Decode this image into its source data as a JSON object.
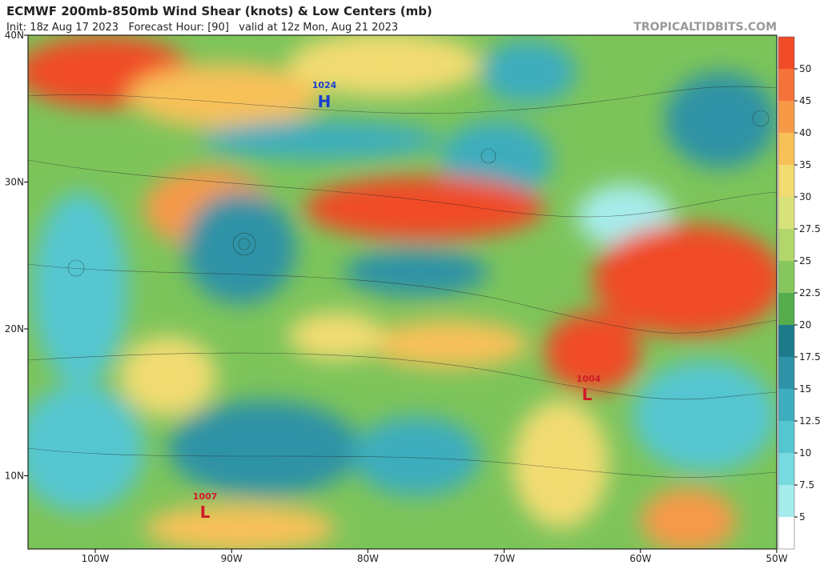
{
  "header": {
    "title": "ECMWF 200mb-850mb Wind Shear (knots) & Low Centers (mb)",
    "subtitle": "Init: 18z Aug 17 2023   Forecast Hour: [90]   valid at 12z Mon, Aug 21 2023",
    "source": "TROPICALTIDBITS.COM"
  },
  "map": {
    "lat_labels": [
      "40N",
      "30N",
      "20N",
      "10N"
    ],
    "lon_labels": [
      "100W",
      "90W",
      "80W",
      "70W",
      "60W",
      "50W"
    ],
    "centers": [
      {
        "pressure": "1024",
        "symbol": "H"
      },
      {
        "pressure": "1004",
        "symbol": "L"
      },
      {
        "pressure": "1007",
        "symbol": "L"
      }
    ]
  },
  "colorbar": {
    "labels": [
      "50",
      "45",
      "40",
      "35",
      "30",
      "27.5",
      "25",
      "22.5",
      "20",
      "17.5",
      "15",
      "12.5",
      "10",
      "7.5",
      "5"
    ],
    "colors": [
      "#f04b28",
      "#f5733a",
      "#f79a48",
      "#f8c158",
      "#f2dc72",
      "#d8e27a",
      "#b2d66c",
      "#86c65c",
      "#55ad4e",
      "#1f7b8c",
      "#2e93a6",
      "#3eadbd",
      "#54c6d0",
      "#76dade",
      "#a6ecec",
      "#ffffff"
    ]
  }
}
